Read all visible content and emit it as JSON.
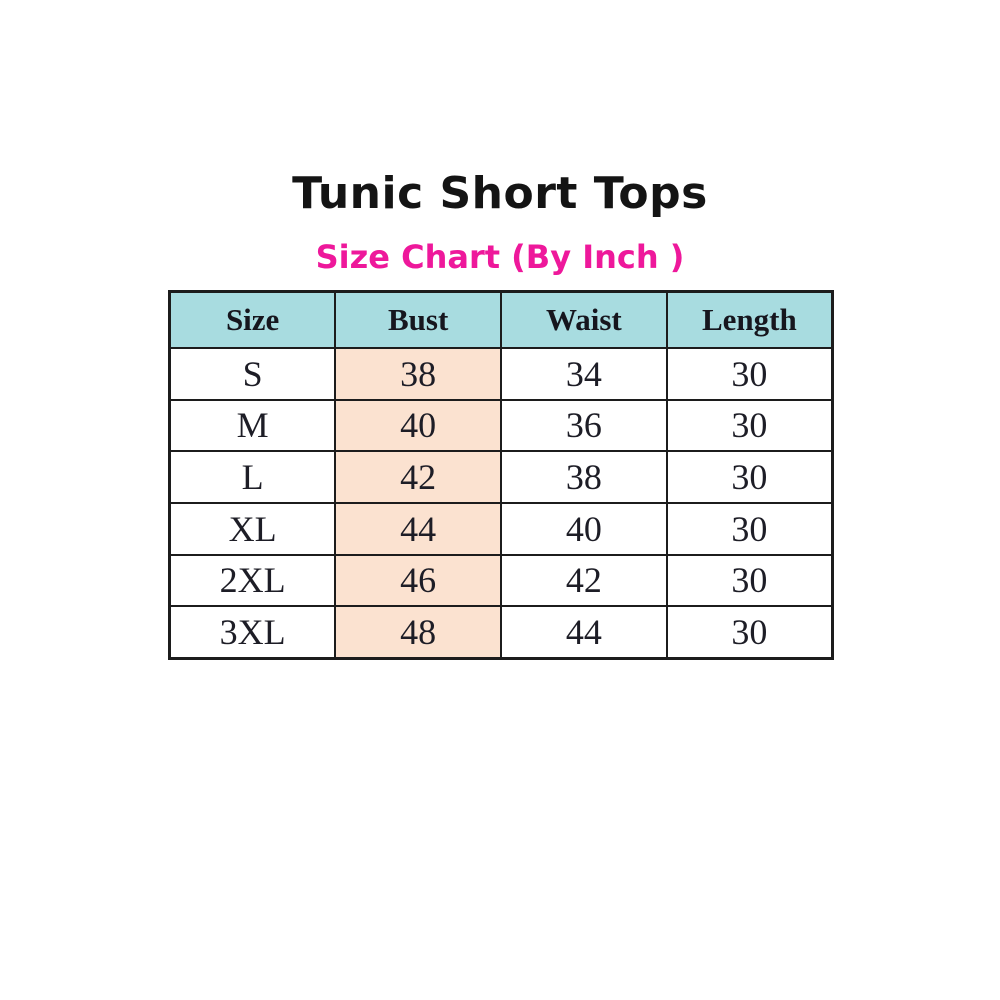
{
  "title": "Tunic Short Tops",
  "subtitle": "Size Chart (By Inch )",
  "colors": {
    "subtitle_pink": "#ee189b",
    "header_bg": "#a8dce0",
    "bust_bg": "#fbe2d0",
    "border_color": "#1c1c1c"
  },
  "chart_data": {
    "type": "table",
    "title": "Tunic Short Tops",
    "subtitle": "Size Chart (By Inch )",
    "unit": "Inch",
    "columns": [
      "Size",
      "Bust",
      "Waist",
      "Length"
    ],
    "rows": [
      [
        "S",
        "38",
        "34",
        "30"
      ],
      [
        "M",
        "40",
        "36",
        "30"
      ],
      [
        "L",
        "42",
        "38",
        "30"
      ],
      [
        "XL",
        "44",
        "40",
        "30"
      ],
      [
        "2XL",
        "46",
        "42",
        "30"
      ],
      [
        "3XL",
        "48",
        "44",
        "30"
      ]
    ],
    "layout_hints": {
      "header_fill": "#a8dce0",
      "bust_column_fill": "#fbe2d0",
      "grid": true
    }
  }
}
